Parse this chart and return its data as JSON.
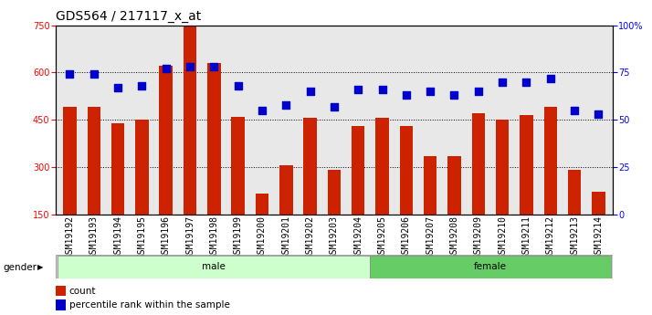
{
  "title": "GDS564 / 217117_x_at",
  "samples": [
    "GSM19192",
    "GSM19193",
    "GSM19194",
    "GSM19195",
    "GSM19196",
    "GSM19197",
    "GSM19198",
    "GSM19199",
    "GSM19200",
    "GSM19201",
    "GSM19202",
    "GSM19203",
    "GSM19204",
    "GSM19205",
    "GSM19206",
    "GSM19207",
    "GSM19208",
    "GSM19209",
    "GSM19210",
    "GSM19211",
    "GSM19212",
    "GSM19213",
    "GSM19214"
  ],
  "counts": [
    490,
    490,
    440,
    450,
    620,
    748,
    630,
    460,
    215,
    305,
    455,
    290,
    430,
    455,
    430,
    335,
    335,
    470,
    450,
    465,
    490,
    290,
    220
  ],
  "percentile": [
    74,
    74,
    67,
    68,
    77,
    78,
    78,
    68,
    55,
    58,
    65,
    57,
    66,
    66,
    63,
    65,
    63,
    65,
    70,
    70,
    72,
    55,
    53
  ],
  "gender_groups": [
    {
      "label": "male",
      "start": 0,
      "end": 13,
      "color": "#ccffcc"
    },
    {
      "label": "female",
      "start": 13,
      "end": 23,
      "color": "#66cc66"
    }
  ],
  "bar_color": "#cc2200",
  "dot_color": "#0000cc",
  "ylim_left": [
    150,
    750
  ],
  "ylim_right": [
    0,
    100
  ],
  "yticks_left": [
    150,
    300,
    450,
    600,
    750
  ],
  "yticks_right": [
    0,
    25,
    50,
    75,
    100
  ],
  "bg_color": "#e8e8e8",
  "bar_width": 0.55,
  "dot_size": 28,
  "title_fontsize": 10,
  "tick_fontsize": 7,
  "label_fontsize": 7,
  "legend_items": [
    {
      "label": "count",
      "color": "#cc2200"
    },
    {
      "label": "percentile rank within the sample",
      "color": "#0000cc"
    }
  ],
  "gender_label": "gender"
}
